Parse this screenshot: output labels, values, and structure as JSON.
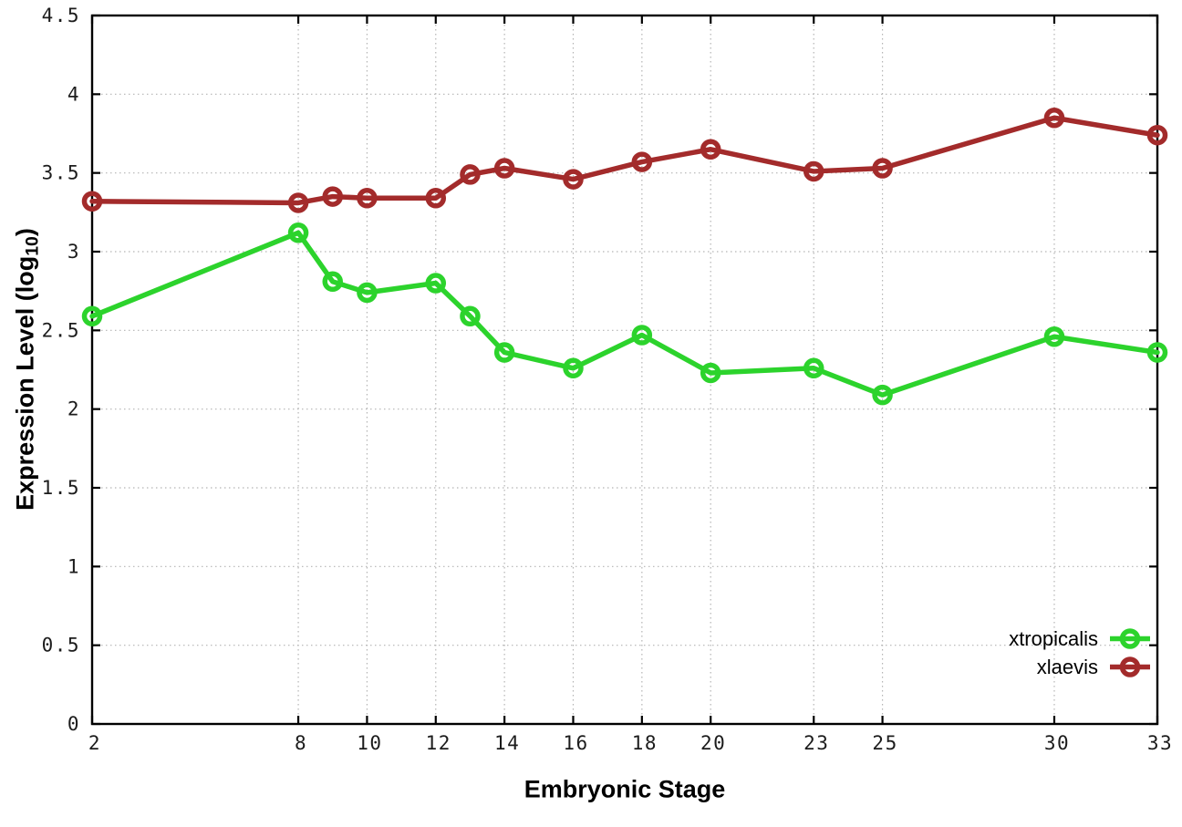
{
  "chart_data": {
    "type": "line",
    "title": "",
    "xlabel": "Embryonic Stage",
    "ylabel_prefix": "Expression Level (log",
    "ylabel_sub": "10",
    "ylabel_suffix": ")",
    "xlim": [
      2,
      33
    ],
    "ylim": [
      0,
      4.5
    ],
    "xticks": [
      "2",
      "8",
      "10",
      "12",
      "14",
      "16",
      "18",
      "20",
      "23",
      "25",
      "30",
      "33"
    ],
    "yticks": [
      "0",
      "0.5",
      "1",
      "1.5",
      "2",
      "2.5",
      "3",
      "3.5",
      "4",
      "4.5"
    ],
    "grid": true,
    "legend_position": "inside-bottom-right",
    "x": [
      2,
      8,
      9,
      10,
      12,
      13,
      14,
      16,
      18,
      20,
      23,
      25,
      30,
      33
    ],
    "series": [
      {
        "name": "xtropicalis",
        "color": "#2cd32c",
        "values": [
          2.59,
          3.12,
          2.81,
          2.74,
          2.8,
          2.59,
          2.36,
          2.26,
          2.47,
          2.23,
          2.26,
          2.09,
          2.46,
          2.36
        ]
      },
      {
        "name": "xlaevis",
        "color": "#a32b2b",
        "values": [
          3.32,
          3.31,
          3.35,
          3.34,
          3.34,
          3.49,
          3.53,
          3.46,
          3.57,
          3.65,
          3.51,
          3.53,
          3.85,
          3.74
        ]
      }
    ],
    "style": {
      "grid_color": "#b4b4b4",
      "border_color": "#000000",
      "tick_label_color": "#1c1c1c",
      "line_width": 5.5,
      "marker_radius": 8.5,
      "marker_stroke": 5.5
    }
  }
}
